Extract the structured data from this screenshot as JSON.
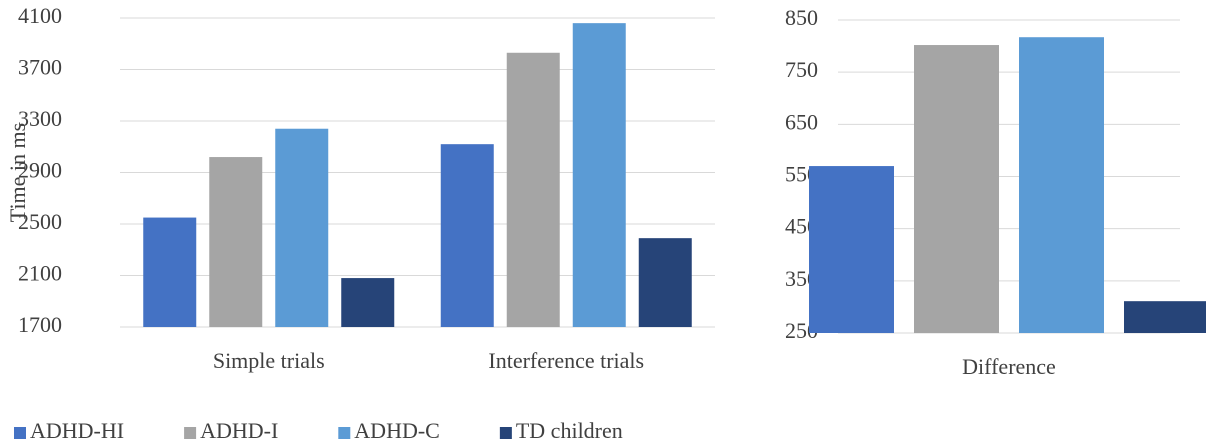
{
  "chart_data": [
    {
      "type": "bar",
      "y_label": "Time in ms",
      "categories": [
        "Simple trials",
        "Interference trials"
      ],
      "ylim": [
        1700,
        4100
      ],
      "yticks": [
        1700,
        2100,
        2500,
        2900,
        3300,
        3700,
        4100
      ],
      "grid": true,
      "legend": "bottom",
      "series": [
        {
          "name": "ADHD-HI",
          "color": "#4472c4",
          "values": [
            2550,
            3120
          ]
        },
        {
          "name": "ADHD-I",
          "color": "#a5a5a5",
          "values": [
            3020,
            3830
          ]
        },
        {
          "name": "ADHD-C",
          "color": "#5b9bd5",
          "values": [
            3240,
            4060
          ]
        },
        {
          "name": "TD children",
          "color": "#264478",
          "values": [
            2080,
            2390
          ]
        }
      ]
    },
    {
      "type": "bar",
      "categories": [
        "Difference"
      ],
      "ylim": [
        250,
        850
      ],
      "yticks": [
        250,
        350,
        450,
        550,
        650,
        750,
        850
      ],
      "grid": true,
      "series": [
        {
          "color": "#4472c4",
          "values": [
            570
          ]
        },
        {
          "color": "#a5a5a5",
          "values": [
            802
          ]
        },
        {
          "color": "#5b9bd5",
          "values": [
            817
          ]
        },
        {
          "color": "#264478",
          "values": [
            311
          ]
        }
      ]
    }
  ]
}
